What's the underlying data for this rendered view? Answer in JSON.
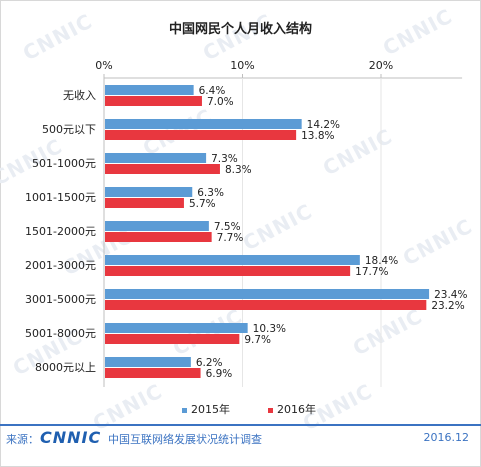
{
  "chart_data": {
    "type": "bar",
    "orientation": "horizontal",
    "title": "中国网民个人月收入结构",
    "categories": [
      "无收入",
      "500元以下",
      "501-1000元",
      "1001-1500元",
      "1501-2000元",
      "2001-3000元",
      "3001-5000元",
      "5001-8000元",
      "8000元以上"
    ],
    "series": [
      {
        "name": "2015年",
        "color": "#5b9bd5",
        "values": [
          6.4,
          14.2,
          7.3,
          6.3,
          7.5,
          18.4,
          23.4,
          10.3,
          6.2
        ],
        "labels": [
          "6.4%",
          "14.2%",
          "7.3%",
          "6.3%",
          "7.5%",
          "18.4%",
          "23.4%",
          "10.3%",
          "6.2%"
        ]
      },
      {
        "name": "2016年",
        "color": "#e8373f",
        "values": [
          7.0,
          13.8,
          8.3,
          5.7,
          7.7,
          17.7,
          23.2,
          9.7,
          6.9
        ],
        "labels": [
          "7.0%",
          "13.8%",
          "8.3%",
          "5.7%",
          "7.7%",
          "17.7%",
          "23.2%",
          "9.7%",
          "6.9%"
        ]
      }
    ],
    "xlim": [
      0,
      26
    ],
    "xticks": [
      0,
      10,
      20
    ],
    "xtick_labels": [
      "0%",
      "10%",
      "20%"
    ],
    "axis_position": "top",
    "grid": true,
    "legend_position": "bottom"
  },
  "watermark": "CNNIC",
  "footer": {
    "source_label": "来源：",
    "logo_text": "CNNIC",
    "org_text": "中国互联网络发展状况统计调查",
    "date": "2016.12"
  }
}
